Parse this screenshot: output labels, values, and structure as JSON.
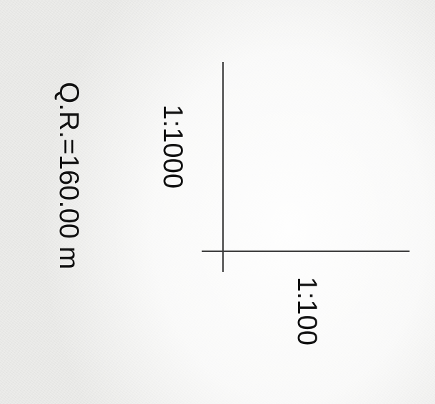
{
  "figure": {
    "quota_reference": "Q.R.=160.00 m",
    "vertical_scale": "1:1000",
    "horizontal_scale": "1:100"
  }
}
